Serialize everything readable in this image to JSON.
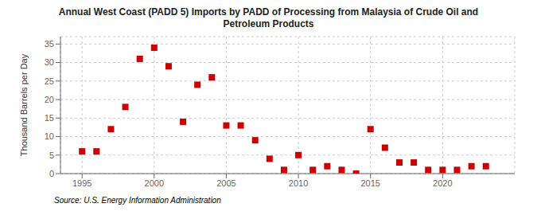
{
  "chart_data": {
    "type": "scatter",
    "title": "Annual West Coast (PADD 5) Imports by PADD of Processing from Malaysia of Crude Oil and\nPetroleum Products",
    "ylabel": "Thousand Barrels per Day",
    "annotations": [
      "Source: U.S. Energy Information Administration"
    ],
    "x": [
      1995,
      1996,
      1997,
      1998,
      1999,
      2000,
      2001,
      2002,
      2003,
      2004,
      2005,
      2006,
      2007,
      2008,
      2009,
      2010,
      2011,
      2012,
      2013,
      2014,
      2015,
      2016,
      2017,
      2018,
      2019,
      2020,
      2021,
      2022,
      2023
    ],
    "values": [
      6,
      6,
      12,
      18,
      31,
      34,
      29,
      14,
      24,
      26,
      13,
      13,
      9,
      4,
      1,
      5,
      1,
      2,
      1,
      0,
      12,
      7,
      3,
      3,
      1,
      1,
      1,
      2,
      2
    ],
    "color": "#cc0000",
    "marker": "square",
    "xlim": [
      1993.5,
      2025
    ],
    "xticks": [
      1995,
      2000,
      2005,
      2010,
      2015,
      2020
    ],
    "ylim": [
      0,
      37
    ],
    "yticks": [
      0,
      5,
      10,
      15,
      20,
      25,
      30,
      35
    ],
    "grid": true
  }
}
